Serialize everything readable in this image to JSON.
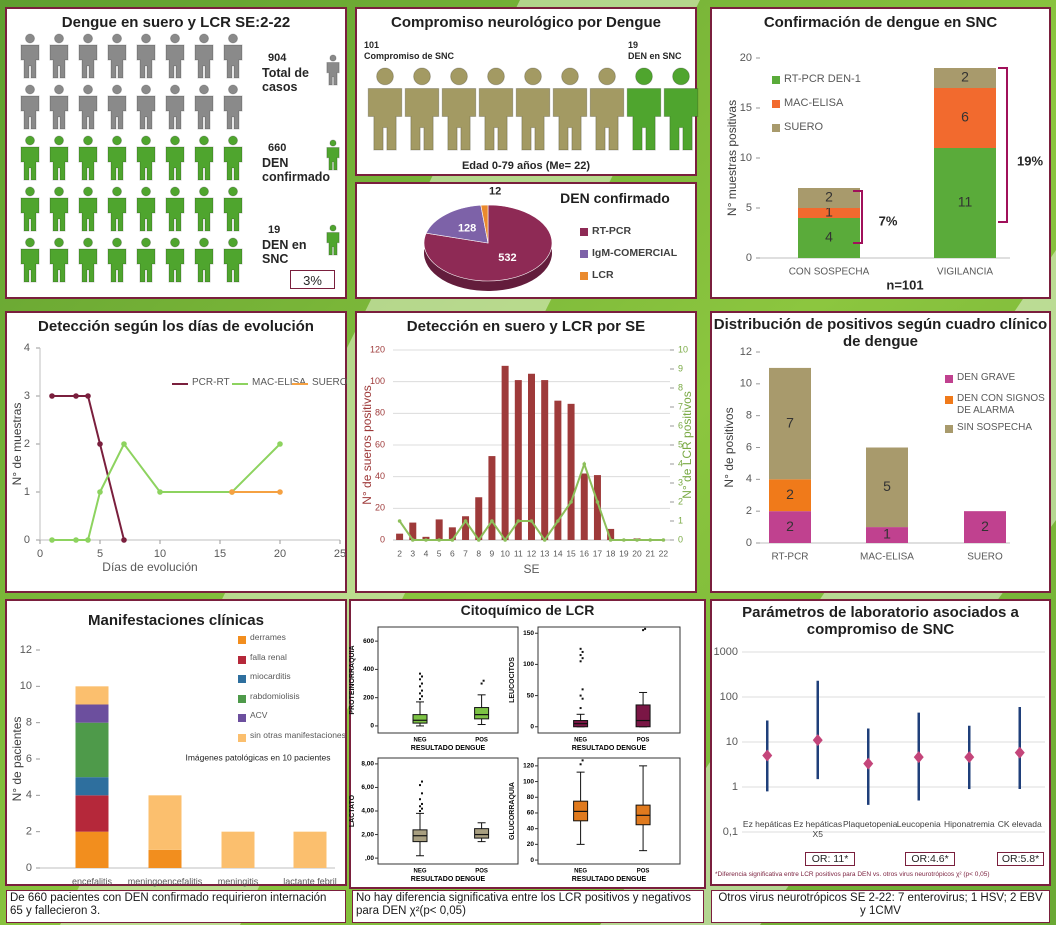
{
  "infographics": {
    "cases": {
      "title": "Dengue en suero y LCR SE:2-22",
      "items": [
        {
          "number": 904,
          "label": "Total de casos"
        },
        {
          "number": 660,
          "label": "DEN confirmado"
        },
        {
          "number": 19,
          "label": "DEN en SNC"
        }
      ],
      "percent": "3%"
    },
    "neuro": {
      "title": "Compromiso neurológico por Dengue",
      "left": {
        "number": 101,
        "label": "Compromiso de SNC"
      },
      "right": {
        "number": 19,
        "label": "DEN en SNC"
      },
      "age": "Edad 0-79 años (Me= 22)"
    }
  },
  "notes": [
    "De 660 pacientes con DEN confirmado requirieron internación 65 y fallecieron 3.",
    "No hay diferencia significativa entre los LCR positivos y negativos para DEN  χ²(p< 0,05)",
    "Otros virus neurotrópicos SE 2-22: 7 enterovirus; 1 HSV; 2 EBV y 1CMV"
  ],
  "chart_data": [
    {
      "type": "pie",
      "title": "DEN confirmado",
      "categories": [
        "RT-PCR",
        "IgM-COMERCIAL",
        "LCR"
      ],
      "values": [
        532,
        128,
        12
      ],
      "colors": [
        "#8e2a55",
        "#7d62a8",
        "#ea8a2e"
      ]
    },
    {
      "type": "bar",
      "stacked": true,
      "title": "Confirmación de dengue en SNC",
      "ylabel": "N° muestras positivas",
      "categories": [
        "CON SOSPECHA",
        "VIGILANCIA"
      ],
      "series": [
        {
          "name": "RT-PCR  DEN-1",
          "color": "#5aab3a",
          "values": [
            4,
            11
          ]
        },
        {
          "name": "MAC-ELISA",
          "color": "#f26a2e",
          "values": [
            1,
            6
          ]
        },
        {
          "name": "SUERO",
          "color": "#a89a6c",
          "values": [
            2,
            2
          ]
        }
      ],
      "ylim": [
        0,
        20
      ],
      "yticks": [
        0,
        5,
        10,
        15,
        20
      ],
      "grid": false,
      "show_values": true,
      "annotations": [
        "7%",
        "19%",
        "n=101"
      ]
    },
    {
      "type": "line",
      "title": "Detección según los días de evolución",
      "xlabel": "Días de evolución",
      "ylabel": "N° de muestras",
      "x": [
        1,
        3,
        4,
        5,
        7,
        10,
        16,
        20
      ],
      "series": [
        {
          "name": "PCR-RT",
          "color": "#7a1f3d",
          "values": [
            3,
            3,
            3,
            2,
            0,
            null,
            null,
            null
          ]
        },
        {
          "name": "MAC-ELISA",
          "color": "#8dd35f",
          "values": [
            0,
            0,
            0,
            1,
            2,
            1,
            1,
            2
          ]
        },
        {
          "name": "SUERO",
          "color": "#f5a142",
          "values": [
            null,
            null,
            null,
            null,
            null,
            null,
            1,
            1
          ]
        }
      ],
      "xlim": [
        0,
        25
      ],
      "xticks": [
        0,
        5,
        10,
        15,
        20,
        25
      ],
      "ylim": [
        0,
        4
      ],
      "yticks": [
        0,
        1,
        2,
        3,
        4
      ],
      "grid": false
    },
    {
      "type": "bar",
      "title": "Detección en suero y LCR por SE",
      "xlabel": "SE",
      "ylabel": "N° de sueros positivos",
      "y2label": "N° de LCR positivos",
      "categories": [
        "2",
        "3",
        "4",
        "5",
        "6",
        "7",
        "8",
        "9",
        "10",
        "11",
        "12",
        "13",
        "14",
        "15",
        "16",
        "17",
        "18",
        "19",
        "20",
        "21",
        "22"
      ],
      "series": [
        {
          "color": "#9e3a3a",
          "values": [
            4,
            11,
            2,
            13,
            8,
            15,
            27,
            53,
            110,
            101,
            105,
            101,
            88,
            86,
            42,
            41,
            7,
            0,
            1,
            0,
            0
          ]
        },
        {
          "color": "#8dbf5a",
          "axis": "y2",
          "type": "line",
          "values": [
            1,
            0,
            0,
            0,
            0,
            1,
            0,
            1,
            0,
            1,
            1,
            0,
            1,
            2,
            4,
            2,
            0,
            0,
            0,
            0,
            0
          ]
        }
      ],
      "ylim": [
        0,
        120
      ],
      "yticks": [
        0,
        20,
        40,
        60,
        80,
        100,
        120
      ],
      "y2lim": [
        0,
        10
      ],
      "y2ticks": [
        0,
        1,
        2,
        3,
        4,
        5,
        6,
        7,
        8,
        9,
        10
      ],
      "grid": true
    },
    {
      "type": "bar",
      "stacked": true,
      "title": "Distribución de positivos según cuadro clínico de dengue",
      "ylabel": "N° de positivos",
      "categories": [
        "RT-PCR",
        "MAC-ELISA",
        "SUERO"
      ],
      "series": [
        {
          "name": "DEN GRAVE",
          "color": "#c0418f",
          "values": [
            2,
            1,
            2
          ]
        },
        {
          "name": "DEN CON SIGNOS DE ALARMA",
          "color": "#f07a1a",
          "values": [
            2,
            0,
            0
          ]
        },
        {
          "name": "SIN SOSPECHA",
          "color": "#a89a6c",
          "values": [
            7,
            5,
            0
          ]
        }
      ],
      "ylim": [
        0,
        12
      ],
      "yticks": [
        0,
        2,
        4,
        6,
        8,
        10,
        12
      ],
      "grid": false,
      "show_values": true
    },
    {
      "type": "bar",
      "stacked": true,
      "title": "Manifestaciones clínicas",
      "ylabel": "N° de pacientes",
      "categories": [
        "encefalitis",
        "meningoencefalitis",
        "meningitis",
        "lactante febril"
      ],
      "series": [
        {
          "name": "derrames",
          "color": "#f28e1e",
          "values": [
            2,
            1,
            0,
            0
          ]
        },
        {
          "name": "falla renal",
          "color": "#b5283a",
          "values": [
            2,
            0,
            0,
            0
          ]
        },
        {
          "name": "miocarditis",
          "color": "#2e6f9e",
          "values": [
            1,
            0,
            0,
            0
          ]
        },
        {
          "name": "rabdomiolisis",
          "color": "#4e9a4a",
          "values": [
            3,
            0,
            0,
            0
          ]
        },
        {
          "name": "ACV",
          "color": "#6c4f9e",
          "values": [
            1,
            0,
            0,
            0
          ]
        },
        {
          "name": "sin otras manifestaciones",
          "color": "#fbbf6e",
          "values": [
            1,
            3,
            2,
            2
          ]
        }
      ],
      "ylim": [
        0,
        12
      ],
      "yticks": [
        0,
        2,
        4,
        6,
        8,
        10,
        12
      ],
      "grid": false,
      "show_values": false,
      "annotations": [
        "Imágenes patológicas  en 10 pacientes"
      ]
    },
    {
      "type": "box",
      "title": "Citoquímico de LCR",
      "xlabel": "RESULTADO DENGUE",
      "categories": [
        "NEG",
        "POS"
      ],
      "panels": [
        {
          "ylabel": "PROTEINORRAQUIA",
          "color": "#7cc244",
          "ylim": [
            -50,
            700
          ],
          "yticks": [
            0,
            200,
            400,
            600
          ],
          "boxes": [
            {
              "low": 0,
              "q1": 20,
              "median": 40,
              "q3": 80,
              "high": 170,
              "outliers": [
                190,
                210,
                230,
                250,
                280,
                300,
                330,
                350,
                370
              ]
            },
            {
              "low": 10,
              "q1": 50,
              "median": 80,
              "q3": 130,
              "high": 220,
              "outliers": [
                300,
                320
              ]
            }
          ]
        },
        {
          "ylabel": "LEUCOCITOS",
          "color": "#7a1645",
          "ylim": [
            -10,
            160
          ],
          "yticks": [
            0,
            50,
            100,
            150
          ],
          "boxes": [
            {
              "low": 0,
              "q1": 0,
              "median": 5,
              "q3": 10,
              "high": 20,
              "outliers": [
                30,
                45,
                50,
                60,
                105,
                110,
                115,
                120,
                125
              ]
            },
            {
              "low": 0,
              "q1": 0,
              "median": 10,
              "q3": 35,
              "high": 55,
              "outliers": [
                155,
                157
              ]
            }
          ]
        },
        {
          "ylabel": "LACTATO",
          "color": "#a89f80",
          "ylim": [
            -0.5,
            8.5
          ],
          "yticks": [
            {
              "value": 0,
              "label": ",00"
            },
            {
              "value": 2,
              "label": "2,00"
            },
            {
              "value": 4,
              "label": "4,00"
            },
            {
              "value": 6,
              "label": "6,00"
            },
            {
              "value": 8,
              "label": "8,00"
            }
          ],
          "boxes": [
            {
              "low": 0.2,
              "q1": 1.4,
              "median": 1.9,
              "q3": 2.4,
              "high": 3.8,
              "outliers": [
                4,
                4.2,
                4.4,
                4.6,
                5,
                5.5,
                6.2,
                6.5
              ]
            },
            {
              "low": 1.4,
              "q1": 1.7,
              "median": 2,
              "q3": 2.5,
              "high": 3,
              "outliers": []
            }
          ]
        },
        {
          "ylabel": "GLUCORRAQUIA",
          "color": "#e07a1e",
          "ylim": [
            -5,
            130
          ],
          "yticks": [
            0,
            20,
            40,
            60,
            80,
            100,
            120
          ],
          "boxes": [
            {
              "low": 20,
              "q1": 50,
              "median": 62,
              "q3": 75,
              "high": 112,
              "outliers": [
                122,
                127
              ]
            },
            {
              "low": 12,
              "q1": 45,
              "median": 57,
              "q3": 70,
              "high": 120,
              "outliers": []
            }
          ]
        }
      ]
    },
    {
      "type": "errorbar",
      "title": "Parámetros de laboratorio asociados a compromiso de SNC",
      "log_scale": true,
      "categories": [
        "Ez hepáticas",
        "Ez hepáticas X5",
        "Plaquetopenia",
        "Leucopenia",
        "Hiponatremia",
        "CK elevada"
      ],
      "values": [
        5,
        11,
        3.3,
        4.6,
        4.6,
        5.8
      ],
      "lower": [
        0.8,
        1.5,
        0.4,
        0.5,
        0.9,
        0.9
      ],
      "upper": [
        30,
        230,
        20,
        45,
        23,
        60
      ],
      "color": "#1f3f7a",
      "marker_color": "#c4457a",
      "ylim": [
        0.1,
        1000
      ],
      "yticks": [
        {
          "value": 0.1,
          "label": "0,1"
        },
        1,
        10,
        100,
        1000
      ],
      "grid": true,
      "annotations": [
        "OR: 11*",
        "OR:4.6*",
        "OR:5.8*"
      ],
      "footnote": "*Diferencia significativa entre LCR positivos para DEN vs. otros virus neurotrópicos χ² (p< 0,05)"
    }
  ]
}
